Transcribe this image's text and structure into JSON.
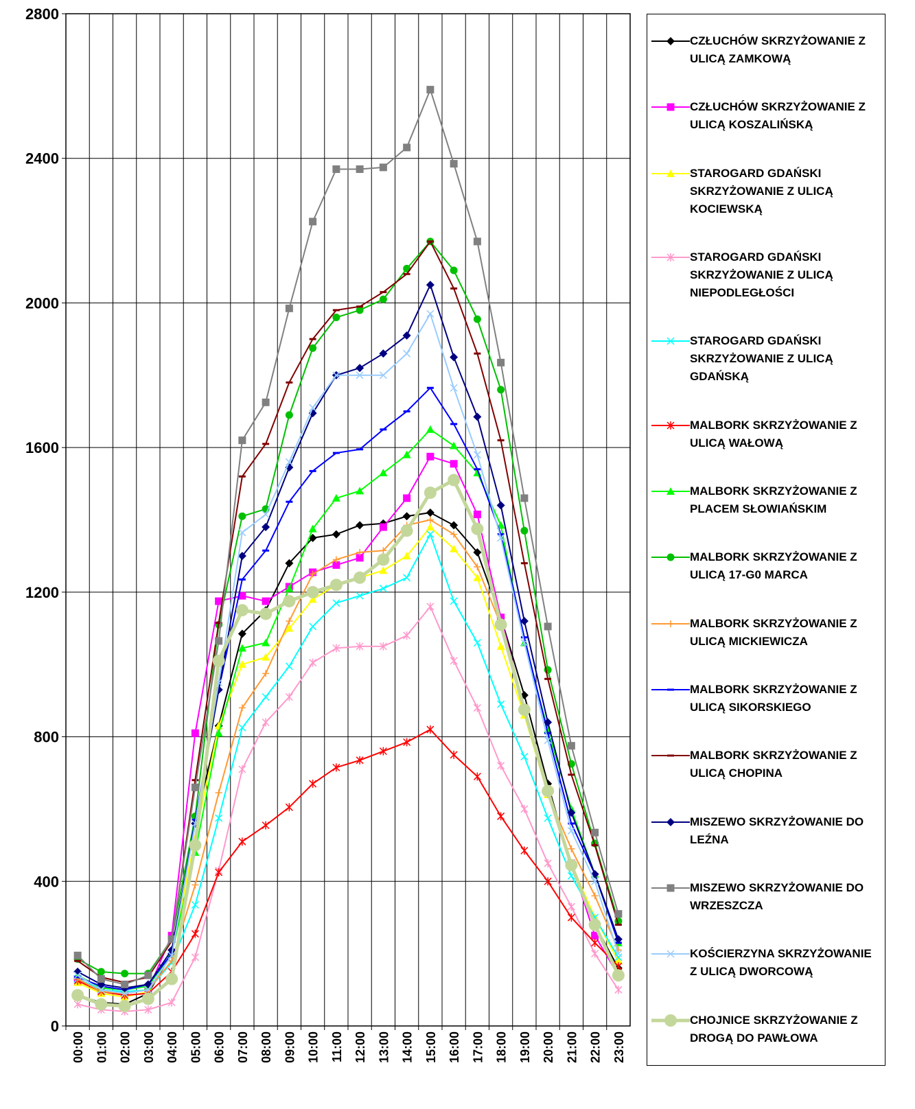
{
  "chart_data": {
    "type": "line",
    "categories": [
      "00:00",
      "01:00",
      "02:00",
      "03:00",
      "04:00",
      "05:00",
      "06:00",
      "07:00",
      "08:00",
      "09:00",
      "10:00",
      "11:00",
      "12:00",
      "13:00",
      "14:00",
      "15:00",
      "16:00",
      "17:00",
      "18:00",
      "19:00",
      "20:00",
      "21:00",
      "22:00",
      "23:00"
    ],
    "ylim": [
      0,
      2800
    ],
    "yticks": [
      0,
      400,
      800,
      1200,
      1600,
      2000,
      2400,
      2800
    ],
    "grid": true,
    "series": [
      {
        "name": "CZŁUCHÓW SKRZYŻOWANIE Z ULICĄ ZAMKOWĄ",
        "color": "#000000",
        "marker": "diamond",
        "values": [
          85,
          65,
          60,
          90,
          200,
          560,
          830,
          1085,
          1150,
          1280,
          1350,
          1360,
          1385,
          1390,
          1410,
          1420,
          1385,
          1310,
          1130,
          915,
          670,
          440,
          280,
          160
        ]
      },
      {
        "name": "CZŁUCHÓW SKRZYŻOWANIE Z ULICĄ KOSZALIŃSKĄ",
        "color": "#ff00ff",
        "marker": "square",
        "values": [
          130,
          100,
          90,
          100,
          250,
          810,
          1175,
          1190,
          1175,
          1215,
          1255,
          1275,
          1295,
          1380,
          1460,
          1575,
          1555,
          1415,
          1130,
          880,
          650,
          450,
          250,
          140
        ]
      },
      {
        "name": "STAROGARD GDAŃSKI SKRZYŻOWANIE Z ULICĄ KOCIEWSKĄ",
        "color": "#ffff00",
        "marker": "triangle",
        "values": [
          120,
          90,
          80,
          95,
          200,
          520,
          830,
          1000,
          1020,
          1100,
          1180,
          1220,
          1240,
          1260,
          1300,
          1380,
          1320,
          1240,
          1050,
          860,
          640,
          450,
          300,
          180
        ]
      },
      {
        "name": "STAROGARD GDAŃSKI SKRZYŻOWANIE Z ULICĄ NIEPODLEGŁOŚCI",
        "color": "#ff99cc",
        "marker": "star",
        "values": [
          60,
          45,
          40,
          45,
          65,
          190,
          430,
          710,
          840,
          910,
          1005,
          1045,
          1050,
          1050,
          1080,
          1160,
          1010,
          880,
          720,
          600,
          450,
          330,
          200,
          100
        ]
      },
      {
        "name": "STAROGARD GDAŃSKI SKRZYŻOWANIE Z ULICĄ GDAŃSKĄ",
        "color": "#00ffff",
        "marker": "x",
        "values": [
          130,
          100,
          95,
          100,
          175,
          335,
          575,
          825,
          910,
          995,
          1105,
          1170,
          1190,
          1210,
          1240,
          1360,
          1175,
          1060,
          890,
          745,
          575,
          415,
          300,
          190
        ]
      },
      {
        "name": "MALBORK SKRZYŻOWANIE Z ULICĄ WAŁOWĄ",
        "color": "#ff0000",
        "marker": "star",
        "values": [
          125,
          95,
          85,
          90,
          150,
          255,
          425,
          510,
          555,
          605,
          670,
          715,
          735,
          760,
          785,
          820,
          750,
          690,
          580,
          485,
          400,
          300,
          230,
          165
        ]
      },
      {
        "name": "MALBORK SKRZYŻOWANIE Z PLACEM SŁOWIAŃSKIM",
        "color": "#00ff00",
        "marker": "triangle",
        "values": [
          140,
          105,
          100,
          110,
          200,
          480,
          810,
          1045,
          1060,
          1210,
          1375,
          1460,
          1480,
          1530,
          1580,
          1650,
          1605,
          1530,
          1385,
          1060,
          820,
          600,
          420,
          230
        ]
      },
      {
        "name": "MALBORK SKRZYŻOWANIE Z ULICĄ 17-G0 MARCA",
        "color": "#00c000",
        "marker": "circle",
        "values": [
          185,
          150,
          145,
          145,
          240,
          580,
          1110,
          1410,
          1430,
          1690,
          1875,
          1960,
          1980,
          2010,
          2095,
          2170,
          2090,
          1955,
          1760,
          1370,
          985,
          725,
          505,
          290
        ]
      },
      {
        "name": "MALBORK SKRZYŻOWANIE Z ULICĄ MICKIEWICZA",
        "color": "#ff9933",
        "marker": "plus",
        "values": [
          130,
          95,
          90,
          100,
          180,
          390,
          645,
          880,
          975,
          1120,
          1250,
          1290,
          1310,
          1315,
          1385,
          1400,
          1360,
          1270,
          1110,
          880,
          640,
          490,
          360,
          210
        ]
      },
      {
        "name": "MALBORK SKRZYŻOWANIE Z ULICĄ SIKORSKIEGO",
        "color": "#0000ff",
        "marker": "dash",
        "values": [
          135,
          110,
          100,
          115,
          200,
          570,
          930,
          1235,
          1315,
          1450,
          1535,
          1585,
          1595,
          1650,
          1700,
          1765,
          1665,
          1540,
          1360,
          1075,
          810,
          560,
          420,
          230
        ]
      },
      {
        "name": "MALBORK SKRZYŻOWANIE Z ULICĄ CHOPINA",
        "color": "#800000",
        "marker": "dash",
        "values": [
          180,
          135,
          120,
          135,
          235,
          680,
          1115,
          1520,
          1610,
          1780,
          1900,
          1980,
          1990,
          2030,
          2080,
          2170,
          2040,
          1860,
          1620,
          1280,
          960,
          695,
          500,
          280
        ]
      },
      {
        "name": "MISZEWO SKRZYŻOWANIE DO LEŹNA",
        "color": "#000080",
        "marker": "diamond",
        "values": [
          150,
          115,
          105,
          115,
          210,
          560,
          930,
          1300,
          1380,
          1545,
          1695,
          1800,
          1820,
          1860,
          1910,
          2050,
          1850,
          1685,
          1440,
          1120,
          840,
          590,
          420,
          240
        ]
      },
      {
        "name": "MISZEWO SKRZYŻOWANIE DO WRZESZCZA",
        "color": "#808080",
        "marker": "square",
        "values": [
          195,
          130,
          115,
          140,
          240,
          660,
          1065,
          1620,
          1725,
          1985,
          2225,
          2370,
          2370,
          2375,
          2430,
          2590,
          2385,
          2170,
          1835,
          1460,
          1105,
          775,
          535,
          310
        ]
      },
      {
        "name": "KOŚCIERZYNA SKRZYŻOWANIE Z ULICĄ DWORCOWĄ",
        "color": "#99ccff",
        "marker": "x",
        "values": [
          140,
          100,
          90,
          100,
          195,
          560,
          950,
          1365,
          1415,
          1560,
          1710,
          1800,
          1800,
          1800,
          1860,
          1970,
          1765,
          1580,
          1350,
          1060,
          790,
          540,
          400,
          200
        ]
      },
      {
        "name": "CHOJNICE SKRZYŻOWANIE Z DROGĄ DO PAWŁOWA",
        "color": "#c4d79b",
        "marker": "bigcircle",
        "values": [
          85,
          60,
          55,
          75,
          130,
          500,
          1010,
          1150,
          1140,
          1175,
          1200,
          1220,
          1240,
          1290,
          1370,
          1475,
          1510,
          1375,
          1110,
          875,
          650,
          445,
          280,
          140
        ]
      }
    ]
  }
}
